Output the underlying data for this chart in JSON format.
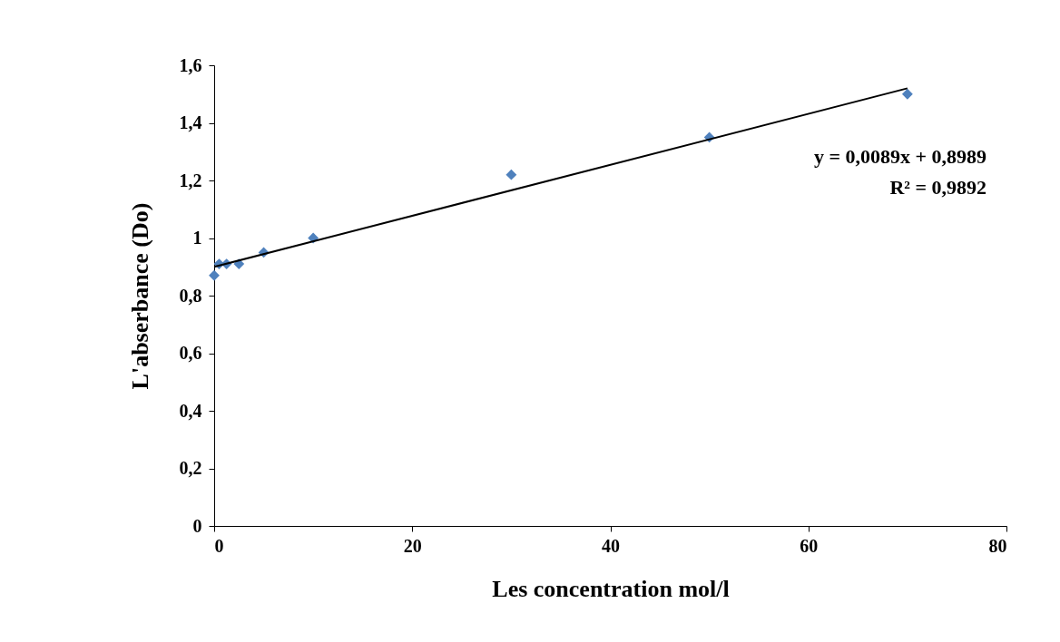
{
  "chart_data": {
    "type": "scatter",
    "xlabel": "Les concentration mol/l",
    "ylabel": "L'abserbance (Do)",
    "marker": "diamond",
    "grid": false,
    "xlim": [
      0,
      80
    ],
    "xticks": [
      0,
      20,
      40,
      60,
      80
    ],
    "ylim": [
      0,
      1.6
    ],
    "yticks": [
      0,
      {
        "value": 0.2,
        "label": "0,2"
      },
      {
        "value": 0.4,
        "label": "0,4"
      },
      {
        "value": 0.6,
        "label": "0,6"
      },
      {
        "value": 0.8,
        "label": "0,8"
      },
      1,
      {
        "value": 1.2,
        "label": "1,2"
      },
      {
        "value": 1.4,
        "label": "1,4"
      },
      {
        "value": 1.6,
        "label": "1,6"
      }
    ],
    "annotations": [
      "y = 0,0089x + 0,8989",
      "R² = 0,9892"
    ],
    "series": [
      {
        "color": "#4f81bd",
        "x": [
          0,
          0.5,
          1.25,
          2.5,
          5,
          10,
          30,
          50,
          70
        ],
        "values": [
          0.87,
          0.91,
          0.91,
          0.91,
          0.95,
          1.0,
          1.22,
          1.35,
          1.5
        ]
      },
      {
        "type": "line",
        "color": "#000000",
        "marker": "none",
        "x": [
          0,
          70
        ],
        "values": [
          0.9,
          1.52
        ]
      }
    ]
  }
}
